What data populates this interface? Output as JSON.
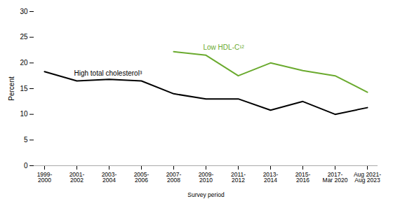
{
  "chart_data": {
    "type": "line",
    "categories": [
      "1999-\n2000",
      "2001-\n2002",
      "2003-\n2004",
      "2005-\n2006",
      "2007-\n2008",
      "2009-\n2010",
      "2011-\n2012",
      "2013-\n2014",
      "2015-\n2016",
      "2017-\nMar 2020",
      "Aug 2021-\nAug 2023"
    ],
    "series": [
      {
        "name": "High total cholesterol³",
        "color": "#000000",
        "values": [
          18.3,
          16.5,
          16.8,
          16.5,
          14.0,
          13.0,
          13.0,
          10.8,
          12.5,
          10.0,
          11.3
        ]
      },
      {
        "name": "Low HDL-C¹²",
        "color": "#6aaa2e",
        "values": [
          null,
          null,
          null,
          null,
          22.2,
          21.5,
          17.5,
          20.0,
          18.5,
          17.5,
          14.3
        ]
      }
    ],
    "xlabel": "Survey period",
    "ylabel": "Percent",
    "ylim": [
      0,
      30
    ],
    "yticks": [
      0,
      5,
      10,
      15,
      20,
      25,
      30
    ],
    "grid": false
  }
}
